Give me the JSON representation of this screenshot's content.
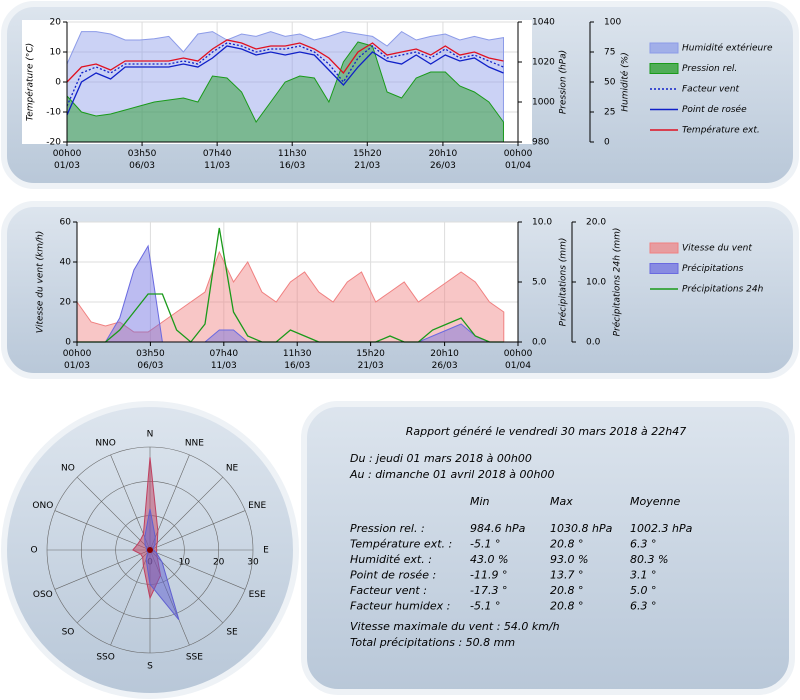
{
  "chart_data": [
    {
      "type": "line",
      "ylabel": "Température (°C)",
      "y2label": "Pression (hPa)",
      "y3label": "Humidité (%)",
      "x": [
        0,
        1,
        2,
        3,
        4,
        5,
        6,
        7,
        8,
        9,
        10,
        11,
        12,
        13,
        14,
        15,
        16,
        17,
        18,
        19,
        20,
        21,
        22,
        23,
        24,
        25,
        26,
        27,
        28,
        29,
        30
      ],
      "xlim": [
        0,
        31
      ],
      "xticks": [
        {
          "value": 0,
          "label": "00h00\n01/03"
        },
        {
          "value": 5.16,
          "label": "03h50\n06/03"
        },
        {
          "value": 10.32,
          "label": "07h40\n11/03"
        },
        {
          "value": 15.48,
          "label": "11h30\n16/03"
        },
        {
          "value": 20.64,
          "label": "15h20\n21/03"
        },
        {
          "value": 25.84,
          "label": "20h10\n26/03"
        },
        {
          "value": 31,
          "label": "00h00\n01/04"
        }
      ],
      "ylim": [
        -20,
        20
      ],
      "yticks": [
        -20,
        -10,
        0,
        10,
        20
      ],
      "y2lim": [
        980,
        1040
      ],
      "y2ticks": [
        980,
        1000,
        1020,
        1040
      ],
      "y3lim": [
        0,
        100
      ],
      "y3ticks": [
        0,
        25,
        50,
        75,
        100
      ],
      "grid": true,
      "series": [
        {
          "name": "Humidité extérieure",
          "color": "#8c9be8",
          "area": true,
          "axis": "y3",
          "values": [
            65,
            92,
            92,
            90,
            85,
            85,
            86,
            88,
            75,
            90,
            92,
            85,
            90,
            88,
            92,
            88,
            90,
            85,
            88,
            92,
            90,
            88,
            80,
            92,
            85,
            88,
            90,
            85,
            88,
            85,
            87
          ]
        },
        {
          "name": "Pression rel.",
          "color": "#1a9a1a",
          "area": true,
          "axis": "y2",
          "values": [
            1003,
            995,
            993,
            994,
            996,
            998,
            1000,
            1001,
            1002,
            1000,
            1013,
            1012,
            1005,
            990,
            1000,
            1010,
            1013,
            1012,
            1000,
            1020,
            1030,
            1028,
            1005,
            1002,
            1012,
            1015,
            1015,
            1008,
            1005,
            1000,
            990
          ]
        },
        {
          "name": "Facteur vent",
          "color": "#1020c8",
          "dash": true,
          "values": [
            -8,
            3,
            5,
            3,
            6,
            6,
            6,
            6,
            7,
            6,
            10,
            13,
            12,
            10,
            11,
            11,
            12,
            10,
            6,
            0,
            8,
            12,
            8,
            9,
            10,
            8,
            11,
            8,
            9,
            7,
            5
          ]
        },
        {
          "name": "Point de rosée",
          "color": "#1020c8",
          "values": [
            -11,
            0,
            3,
            1,
            5,
            5,
            5,
            5,
            6,
            5,
            8,
            12,
            11,
            9,
            10,
            9,
            10,
            9,
            4,
            -1,
            5,
            10,
            7,
            6,
            9,
            6,
            9,
            7,
            8,
            5,
            3
          ]
        },
        {
          "name": "Température ext.",
          "color": "#e01020",
          "values": [
            0,
            5,
            6,
            4,
            7,
            7,
            7,
            7,
            8,
            7,
            11,
            14,
            13,
            11,
            12,
            12,
            13,
            11,
            8,
            3,
            10,
            13,
            9,
            10,
            11,
            9,
            12,
            9,
            10,
            8,
            7
          ]
        }
      ]
    },
    {
      "type": "line",
      "ylabel": "Vitesse du vent (km/h)",
      "y2label": "Précipitations (mm)",
      "y3label": "Précipitations 24h (mm)",
      "x": [
        0,
        1,
        2,
        3,
        4,
        5,
        6,
        7,
        8,
        9,
        10,
        11,
        12,
        13,
        14,
        15,
        16,
        17,
        18,
        19,
        20,
        21,
        22,
        23,
        24,
        25,
        26,
        27,
        28,
        29,
        30
      ],
      "xlim": [
        0,
        31
      ],
      "xticks": [
        {
          "value": 0,
          "label": "00h00\n01/03"
        },
        {
          "value": 5.16,
          "label": "03h50\n06/03"
        },
        {
          "value": 10.32,
          "label": "07h40\n11/03"
        },
        {
          "value": 15.48,
          "label": "11h30\n16/03"
        },
        {
          "value": 20.64,
          "label": "15h20\n21/03"
        },
        {
          "value": 25.84,
          "label": "20h10\n26/03"
        },
        {
          "value": 31,
          "label": "00h00\n01/04"
        }
      ],
      "ylim": [
        0,
        60
      ],
      "yticks": [
        0,
        20,
        40,
        60
      ],
      "y2lim": [
        0,
        10
      ],
      "y2ticks": [
        {
          "value": 0,
          "label": "0.0"
        },
        {
          "value": 5,
          "label": "5.0"
        },
        {
          "value": 10,
          "label": "10.0"
        }
      ],
      "y3lim": [
        0,
        20
      ],
      "y3ticks": [
        {
          "value": 0,
          "label": "0.0"
        },
        {
          "value": 10,
          "label": "10.0"
        },
        {
          "value": 20,
          "label": "20.0"
        }
      ],
      "grid": true,
      "series": [
        {
          "name": "Vitesse du vent",
          "color": "#f08080",
          "area": true,
          "values": [
            20,
            10,
            8,
            10,
            5,
            5,
            10,
            15,
            20,
            25,
            45,
            30,
            40,
            25,
            20,
            30,
            35,
            25,
            20,
            30,
            35,
            20,
            25,
            30,
            20,
            25,
            30,
            35,
            30,
            20,
            15
          ]
        },
        {
          "name": "Précipitations",
          "color": "#6a6ae0",
          "area": true,
          "axis": "y2",
          "values": [
            0,
            0,
            0,
            2,
            6,
            8,
            0,
            0,
            0,
            0,
            1,
            1,
            0,
            0,
            0,
            0,
            0,
            0,
            0,
            0,
            0,
            0,
            0,
            0,
            0,
            0.5,
            1,
            1.5,
            0.5,
            0,
            0
          ]
        },
        {
          "name": "Précipitations 24h",
          "color": "#1a9a1a",
          "axis": "y3",
          "values": [
            0,
            0,
            0,
            2,
            5,
            8,
            8,
            2,
            0,
            3,
            19,
            5,
            1,
            0,
            0,
            2,
            1,
            0,
            0,
            0,
            0,
            0,
            1,
            0,
            0,
            2,
            3,
            4,
            1,
            0,
            0
          ]
        }
      ]
    },
    {
      "type": "radar",
      "categories": [
        "N",
        "NNE",
        "NE",
        "ENE",
        "E",
        "ESE",
        "SE",
        "SSE",
        "S",
        "SSO",
        "SO",
        "OSO",
        "O",
        "ONO",
        "NO",
        "NNO"
      ],
      "rlim": [
        0,
        30
      ],
      "rticks": [
        0,
        10,
        20,
        30
      ],
      "series": [
        {
          "color": "#c04060",
          "values": [
            27,
            6,
            3,
            2,
            2,
            2,
            3,
            8,
            14,
            5,
            3,
            3,
            5,
            4,
            4,
            5
          ]
        },
        {
          "color": "#6060d0",
          "values": [
            12,
            4,
            2,
            1,
            1,
            2,
            5,
            22,
            10,
            3,
            1,
            1,
            1,
            1,
            2,
            4
          ]
        }
      ]
    }
  ],
  "report": {
    "title": "Rapport généré le vendredi 30 mars 2018 à 22h47",
    "period": [
      "Du : jeudi 01 mars 2018 à 00h00",
      "Au : dimanche 01 avril 2018 à 00h00"
    ],
    "columns": [
      "Min",
      "Max",
      "Moyenne"
    ],
    "rows": [
      [
        "Pression rel. :",
        "984.6 hPa",
        "1030.8 hPa",
        "1002.3 hPa"
      ],
      [
        "Température ext. :",
        "-5.1 °",
        "20.8 °",
        "6.3 °"
      ],
      [
        "Humidité ext. :",
        "43.0 %",
        "93.0 %",
        "80.3 %"
      ],
      [
        "Point de rosée :",
        "-11.9 °",
        "13.7 °",
        "3.1 °"
      ],
      [
        "Facteur vent :",
        "-17.3 °",
        "20.8 °",
        "5.0 °"
      ],
      [
        "Facteur humidex :",
        "-5.1 °",
        "20.8 °",
        "6.3 °"
      ]
    ],
    "footer": [
      "Vitesse maximale du vent : 54.0 km/h",
      "Total précipitations : 50.8 mm"
    ]
  }
}
